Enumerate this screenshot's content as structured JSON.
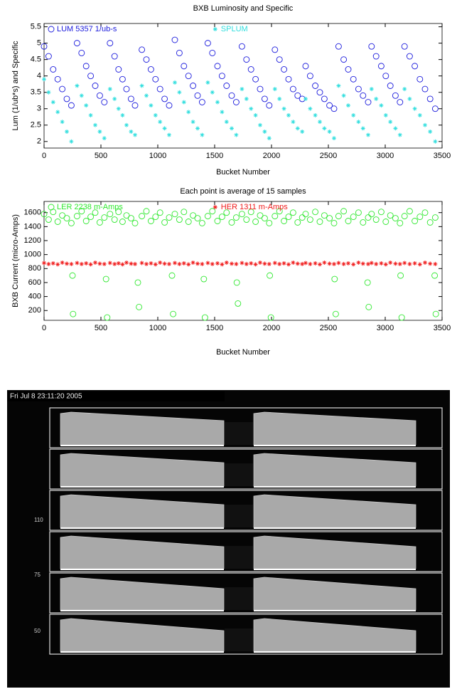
{
  "chart_data": [
    {
      "type": "scatter",
      "title": "BXB Luminosity and Specific",
      "x_label": "Bucket Number",
      "y_label": "Lum (1/ub*s) and Specific",
      "xlim": [
        0,
        3500
      ],
      "xticks": [
        0,
        500,
        1000,
        1500,
        2000,
        2500,
        3000,
        3500
      ],
      "ylim": [
        1.8,
        5.6
      ],
      "yticks": [
        2,
        2.5,
        3,
        3.5,
        4,
        4.5,
        5,
        5.5
      ],
      "x": [
        0,
        40,
        80,
        120,
        160,
        200,
        240,
        290,
        330,
        370,
        410,
        450,
        490,
        530,
        580,
        620,
        655,
        690,
        725,
        765,
        800,
        860,
        900,
        940,
        980,
        1020,
        1060,
        1100,
        1150,
        1190,
        1230,
        1270,
        1310,
        1350,
        1390,
        1440,
        1480,
        1525,
        1565,
        1605,
        1650,
        1690,
        1740,
        1780,
        1820,
        1860,
        1900,
        1940,
        1980,
        2030,
        2070,
        2110,
        2150,
        2190,
        2230,
        2270,
        2300,
        2340,
        2385,
        2425,
        2465,
        2510,
        2550,
        2590,
        2635,
        2675,
        2720,
        2765,
        2805,
        2850,
        2880,
        2920,
        2965,
        3005,
        3045,
        3090,
        3130,
        3170,
        3215,
        3260,
        3305,
        3350,
        3395,
        3440
      ],
      "series": [
        {
          "name": "LUM 5357 1/ub-s",
          "color": "#1a1adc",
          "marker": "o",
          "values": [
            4.9,
            4.6,
            4.2,
            3.9,
            3.6,
            3.3,
            3.1,
            5.0,
            4.7,
            4.3,
            4.0,
            3.7,
            3.4,
            3.2,
            5.0,
            4.6,
            4.2,
            3.9,
            3.6,
            3.3,
            3.1,
            4.8,
            4.5,
            4.2,
            3.9,
            3.6,
            3.3,
            3.1,
            5.1,
            4.7,
            4.3,
            4.0,
            3.7,
            3.4,
            3.2,
            5.0,
            4.7,
            4.3,
            4.0,
            3.7,
            3.4,
            3.2,
            4.9,
            4.5,
            4.2,
            3.9,
            3.6,
            3.3,
            3.1,
            4.8,
            4.5,
            4.2,
            3.9,
            3.6,
            3.4,
            3.3,
            4.3,
            4.0,
            3.7,
            3.5,
            3.3,
            3.1,
            3.0,
            4.9,
            4.5,
            4.2,
            3.9,
            3.6,
            3.4,
            3.2,
            4.9,
            4.6,
            4.3,
            4.0,
            3.7,
            3.4,
            3.2,
            4.9,
            4.6,
            4.3,
            3.9,
            3.6,
            3.3,
            3.0
          ]
        },
        {
          "name": "SPLUM",
          "color": "#30dede",
          "marker": "*",
          "values": [
            3.9,
            3.5,
            3.2,
            2.9,
            2.6,
            2.3,
            2.0,
            3.7,
            3.4,
            3.1,
            2.8,
            2.5,
            2.3,
            2.1,
            3.6,
            3.3,
            3.0,
            2.8,
            2.5,
            2.3,
            2.2,
            3.7,
            3.4,
            3.1,
            2.8,
            2.6,
            2.4,
            2.2,
            3.8,
            3.5,
            3.2,
            2.9,
            2.6,
            2.4,
            2.2,
            3.8,
            3.5,
            3.2,
            2.9,
            2.6,
            2.4,
            2.2,
            3.6,
            3.3,
            3.0,
            2.8,
            2.5,
            2.3,
            2.1,
            3.6,
            3.3,
            3.0,
            2.8,
            2.6,
            2.4,
            2.3,
            3.3,
            3.0,
            2.8,
            2.6,
            2.4,
            2.3,
            2.1,
            3.7,
            3.4,
            3.1,
            2.8,
            2.6,
            2.4,
            2.2,
            3.6,
            3.3,
            3.1,
            2.8,
            2.6,
            2.4,
            2.2,
            3.6,
            3.3,
            3.0,
            2.8,
            2.5,
            2.3,
            2.0
          ]
        }
      ]
    },
    {
      "type": "scatter",
      "title": "Each point is average of 15 samples",
      "x_label": "Bucket Number",
      "y_label": "BXB Current (micro-Amps)",
      "xlim": [
        0,
        3500
      ],
      "xticks": [
        0,
        500,
        1000,
        1500,
        2000,
        2500,
        3000,
        3500
      ],
      "ylim": [
        60,
        1760
      ],
      "yticks": [
        200,
        400,
        600,
        800,
        1000,
        1200,
        1400,
        1600
      ],
      "x": [
        0,
        40,
        80,
        120,
        160,
        200,
        240,
        290,
        330,
        370,
        410,
        450,
        490,
        530,
        580,
        620,
        655,
        690,
        725,
        765,
        800,
        860,
        900,
        940,
        980,
        1020,
        1060,
        1100,
        1150,
        1190,
        1230,
        1270,
        1310,
        1350,
        1390,
        1440,
        1480,
        1525,
        1565,
        1605,
        1650,
        1690,
        1740,
        1780,
        1820,
        1860,
        1900,
        1940,
        1980,
        2030,
        2070,
        2110,
        2150,
        2190,
        2230,
        2270,
        2300,
        2340,
        2385,
        2425,
        2465,
        2510,
        2550,
        2590,
        2635,
        2675,
        2720,
        2765,
        2805,
        2850,
        2880,
        2920,
        2965,
        3005,
        3045,
        3090,
        3130,
        3170,
        3215,
        3260,
        3305,
        3350,
        3395,
        3440,
        250,
        255,
        545,
        555,
        825,
        835,
        1125,
        1135,
        1405,
        1415,
        1695,
        1705,
        1985,
        1995,
        2555,
        2565,
        2845,
        2855,
        3135,
        3145,
        3435,
        3445
      ],
      "series": [
        {
          "name": "LER 2238 m-Amps",
          "color": "#30e830",
          "marker": "o",
          "values": [
            1580,
            1500,
            1610,
            1470,
            1560,
            1520,
            1450,
            1550,
            1620,
            1480,
            1540,
            1600,
            1460,
            1530,
            1580,
            1500,
            1610,
            1470,
            1560,
            1520,
            1450,
            1550,
            1620,
            1480,
            1540,
            1600,
            1460,
            1530,
            1580,
            1500,
            1610,
            1470,
            1560,
            1520,
            1450,
            1550,
            1620,
            1480,
            1540,
            1600,
            1460,
            1530,
            1580,
            1500,
            1610,
            1470,
            1560,
            1520,
            1450,
            1550,
            1620,
            1480,
            1540,
            1600,
            1460,
            1530,
            1580,
            1500,
            1610,
            1470,
            1560,
            1520,
            1450,
            1550,
            1620,
            1480,
            1540,
            1600,
            1460,
            1530,
            1580,
            1500,
            1610,
            1470,
            1560,
            1520,
            1450,
            1550,
            1620,
            1480,
            1540,
            1600,
            1460,
            1530,
            700,
            150,
            650,
            100,
            600,
            250,
            700,
            150,
            650,
            100,
            600,
            300,
            700,
            100,
            650,
            150,
            600,
            250,
            700,
            100,
            700,
            150
          ]
        },
        {
          "name": "HER 1311 m-Amps",
          "color": "#f01c1c",
          "marker": "*",
          "values": [
            880,
            865,
            875,
            860,
            885,
            870,
            865,
            880,
            865,
            875,
            860,
            885,
            870,
            865,
            880,
            865,
            875,
            860,
            885,
            870,
            865,
            880,
            865,
            875,
            860,
            885,
            870,
            865,
            880,
            865,
            875,
            860,
            885,
            870,
            865,
            880,
            865,
            875,
            860,
            885,
            870,
            865,
            880,
            865,
            875,
            860,
            885,
            870,
            865,
            880,
            865,
            875,
            860,
            885,
            870,
            865,
            880,
            865,
            875,
            860,
            885,
            870,
            865,
            880,
            865,
            875,
            860,
            885,
            870,
            865,
            880,
            865,
            875,
            860,
            885,
            870,
            865,
            880,
            865,
            875,
            860,
            885,
            870,
            865,
            null,
            null,
            null,
            null,
            null,
            null,
            null,
            null,
            null,
            null,
            null,
            null,
            null,
            null,
            null,
            null,
            null,
            null,
            null,
            null,
            null,
            null
          ]
        }
      ]
    }
  ],
  "scope_image": {
    "timestamp": "Fri Jul 8 23:11:20 2005",
    "row_labels": [
      "110",
      "75",
      "50"
    ]
  }
}
